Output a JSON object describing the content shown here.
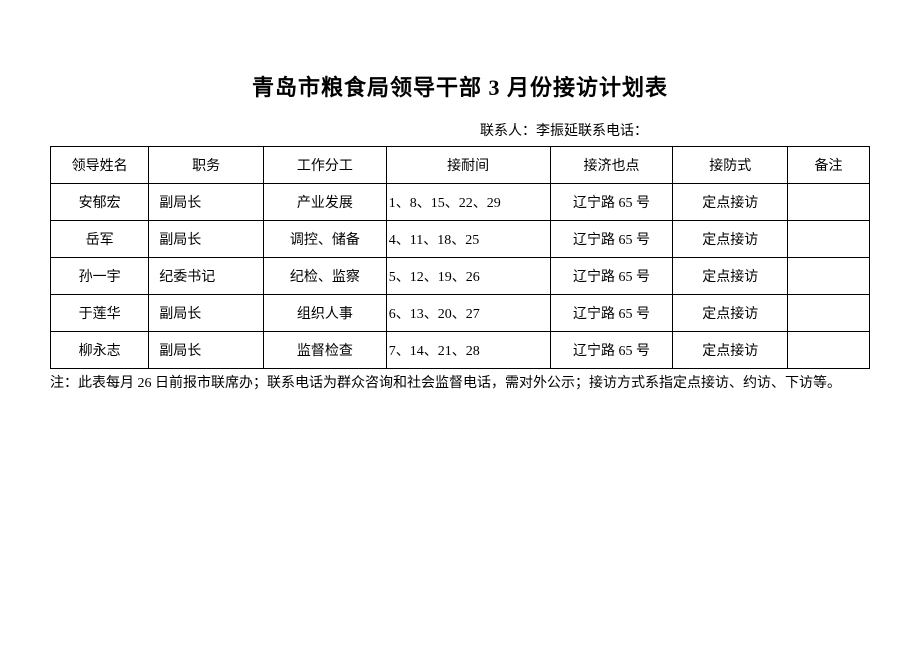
{
  "title": "青岛市粮食局领导干部 3 月份接访计划表",
  "contact": {
    "label": "联系人：",
    "name": "李振延",
    "phone_label": "联系电话："
  },
  "table": {
    "headers": {
      "name": "领导姓名",
      "position": "职务",
      "work": "工作分工",
      "time": "接耐间",
      "location": "接济也点",
      "method": "接防式",
      "remark": "备注"
    },
    "rows": [
      {
        "name": "安郁宏",
        "position": "副局长",
        "work": "产业发展",
        "time": "1、8、15、22、29",
        "location": "辽宁路 65 号",
        "method": "定点接访",
        "remark": ""
      },
      {
        "name": "岳军",
        "position": "副局长",
        "work": "调控、储备",
        "time": "4、11、18、25",
        "location": "辽宁路 65 号",
        "method": "定点接访",
        "remark": ""
      },
      {
        "name": "孙一宇",
        "position": "纪委书记",
        "work": "纪检、监察",
        "time": "5、12、19、26",
        "location": "辽宁路 65 号",
        "method": "定点接访",
        "remark": ""
      },
      {
        "name": "于莲华",
        "position": "副局长",
        "work": "组织人事",
        "time": "6、13、20、27",
        "location": "辽宁路 65 号",
        "method": "定点接访",
        "remark": ""
      },
      {
        "name": "柳永志",
        "position": "副局长",
        "work": "监督检查",
        "time": "7、14、21、28",
        "location": "辽宁路 65 号",
        "method": "定点接访",
        "remark": ""
      }
    ]
  },
  "footnote": "注：此表每月 26 日前报市联席办；联系电话为群众咨询和社会监督电话，需对外公示；接访方式系指定点接访、约访、下访等。"
}
